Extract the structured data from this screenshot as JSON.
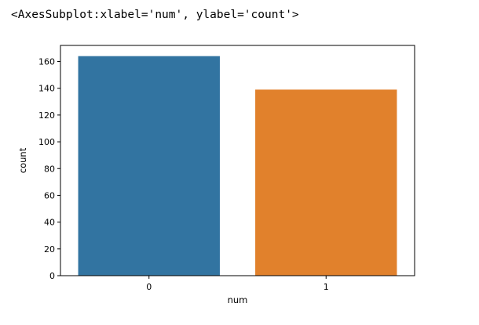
{
  "output": {
    "repr_text": "<AxesSubplot:xlabel='num', ylabel='count'>"
  },
  "chart_data": {
    "type": "bar",
    "categories": [
      "0",
      "1"
    ],
    "values": [
      164,
      139
    ],
    "colors": [
      "#3274a1",
      "#e1812c"
    ],
    "title": "",
    "xlabel": "num",
    "ylabel": "count",
    "ylim": [
      0,
      172
    ],
    "yticks": [
      0,
      20,
      40,
      60,
      80,
      100,
      120,
      140,
      160
    ],
    "grid": false,
    "legend": "none"
  }
}
